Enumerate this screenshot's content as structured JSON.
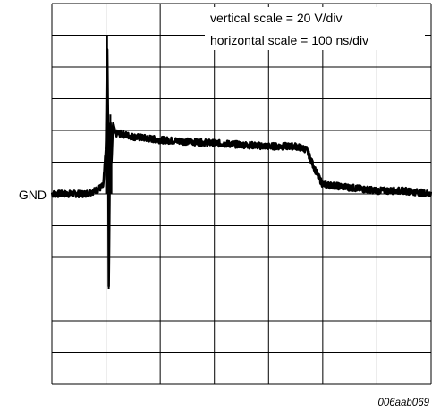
{
  "chart_data": {
    "type": "line",
    "title": "",
    "xlabel": "",
    "ylabel": "",
    "grid": true,
    "divisions": {
      "x": 7,
      "y": 12
    },
    "ground_marker": {
      "label": "GND",
      "division_from_top": 6
    },
    "annotations": {
      "vertical_scale": "vertical scale = 20 V/div",
      "horizontal_scale": "horizontal scale = 100 ns/div",
      "figure_code": "006aab069"
    },
    "units": {
      "x": "ns",
      "y": "V"
    },
    "xlim": [
      0,
      700
    ],
    "ylim": [
      -120,
      120
    ],
    "series": [
      {
        "x": [
          0,
          60,
          80,
          95,
          100,
          102,
          104,
          105,
          106,
          108,
          110,
          113,
          118,
          125,
          150,
          200,
          300,
          400,
          450,
          470,
          490,
          500,
          550,
          600,
          650,
          700
        ],
        "y": [
          0,
          0,
          2,
          5,
          30,
          100,
          40,
          -60,
          -20,
          50,
          20,
          45,
          38,
          38,
          36,
          34,
          32,
          30,
          30,
          28,
          12,
          6,
          4,
          2,
          2,
          0
        ]
      }
    ]
  }
}
